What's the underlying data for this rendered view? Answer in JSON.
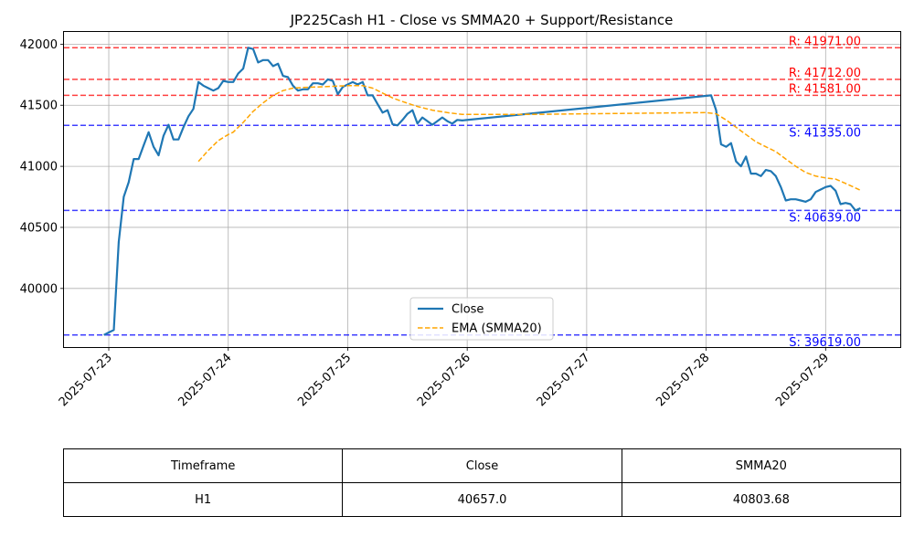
{
  "chart_data": {
    "type": "line",
    "title": "JP225Cash H1 - Close vs SMMA20 + Support/Resistance",
    "xlabel": "",
    "ylabel": "",
    "ylim": [
      39520,
      42100
    ],
    "xlim": [
      "2025-07-22T15:00",
      "2025-07-29T15:00"
    ],
    "grid": true,
    "legend_position": "lower center",
    "x_tick_labels": [
      "2025-07-23",
      "2025-07-24",
      "2025-07-25",
      "2025-07-26",
      "2025-07-27",
      "2025-07-28",
      "2025-07-29"
    ],
    "y_tick_labels": [
      "40000",
      "40500",
      "41000",
      "41500",
      "42000"
    ],
    "series": [
      {
        "name": "Close",
        "color": "#1f77b4",
        "style": "solid",
        "points": [
          [
            "2025-07-22T23:00",
            39619
          ],
          [
            "2025-07-23T00:00",
            39640
          ],
          [
            "2025-07-23T01:00",
            39660
          ],
          [
            "2025-07-23T02:00",
            40380
          ],
          [
            "2025-07-23T03:00",
            40750
          ],
          [
            "2025-07-23T04:00",
            40870
          ],
          [
            "2025-07-23T05:00",
            41060
          ],
          [
            "2025-07-23T06:00",
            41060
          ],
          [
            "2025-07-23T07:00",
            41170
          ],
          [
            "2025-07-23T08:00",
            41280
          ],
          [
            "2025-07-23T09:00",
            41160
          ],
          [
            "2025-07-23T10:00",
            41090
          ],
          [
            "2025-07-23T11:00",
            41250
          ],
          [
            "2025-07-23T12:00",
            41340
          ],
          [
            "2025-07-23T13:00",
            41220
          ],
          [
            "2025-07-23T14:00",
            41220
          ],
          [
            "2025-07-23T15:00",
            41320
          ],
          [
            "2025-07-23T16:00",
            41410
          ],
          [
            "2025-07-23T17:00",
            41470
          ],
          [
            "2025-07-23T18:00",
            41690
          ],
          [
            "2025-07-23T19:00",
            41660
          ],
          [
            "2025-07-23T20:00",
            41640
          ],
          [
            "2025-07-23T21:00",
            41620
          ],
          [
            "2025-07-23T22:00",
            41640
          ],
          [
            "2025-07-23T23:00",
            41700
          ],
          [
            "2025-07-24T00:00",
            41690
          ],
          [
            "2025-07-24T01:00",
            41690
          ],
          [
            "2025-07-24T02:00",
            41760
          ],
          [
            "2025-07-24T03:00",
            41800
          ],
          [
            "2025-07-24T04:00",
            41971
          ],
          [
            "2025-07-24T05:00",
            41960
          ],
          [
            "2025-07-24T06:00",
            41850
          ],
          [
            "2025-07-24T07:00",
            41870
          ],
          [
            "2025-07-24T08:00",
            41870
          ],
          [
            "2025-07-24T09:00",
            41820
          ],
          [
            "2025-07-24T10:00",
            41840
          ],
          [
            "2025-07-24T11:00",
            41740
          ],
          [
            "2025-07-24T12:00",
            41730
          ],
          [
            "2025-07-24T13:00",
            41660
          ],
          [
            "2025-07-24T14:00",
            41620
          ],
          [
            "2025-07-24T15:00",
            41630
          ],
          [
            "2025-07-24T16:00",
            41630
          ],
          [
            "2025-07-24T17:00",
            41680
          ],
          [
            "2025-07-24T18:00",
            41680
          ],
          [
            "2025-07-24T19:00",
            41670
          ],
          [
            "2025-07-24T20:00",
            41712
          ],
          [
            "2025-07-24T21:00",
            41700
          ],
          [
            "2025-07-24T22:00",
            41590
          ],
          [
            "2025-07-24T23:00",
            41650
          ],
          [
            "2025-07-25T00:00",
            41670
          ],
          [
            "2025-07-25T01:00",
            41690
          ],
          [
            "2025-07-25T02:00",
            41670
          ],
          [
            "2025-07-25T03:00",
            41690
          ],
          [
            "2025-07-25T04:00",
            41581
          ],
          [
            "2025-07-25T05:00",
            41581
          ],
          [
            "2025-07-25T06:00",
            41510
          ],
          [
            "2025-07-25T07:00",
            41440
          ],
          [
            "2025-07-25T08:00",
            41460
          ],
          [
            "2025-07-25T09:00",
            41345
          ],
          [
            "2025-07-25T10:00",
            41335
          ],
          [
            "2025-07-25T11:00",
            41380
          ],
          [
            "2025-07-25T12:00",
            41430
          ],
          [
            "2025-07-25T13:00",
            41460
          ],
          [
            "2025-07-25T14:00",
            41350
          ],
          [
            "2025-07-25T15:00",
            41400
          ],
          [
            "2025-07-25T16:00",
            41370
          ],
          [
            "2025-07-25T17:00",
            41340
          ],
          [
            "2025-07-25T18:00",
            41370
          ],
          [
            "2025-07-25T19:00",
            41400
          ],
          [
            "2025-07-25T20:00",
            41370
          ],
          [
            "2025-07-25T21:00",
            41350
          ],
          [
            "2025-07-25T22:00",
            41380
          ],
          [
            "2025-07-25T23:00",
            41375
          ],
          [
            "2025-07-28T01:00",
            41581
          ],
          [
            "2025-07-28T02:00",
            41460
          ],
          [
            "2025-07-28T03:00",
            41180
          ],
          [
            "2025-07-28T04:00",
            41160
          ],
          [
            "2025-07-28T05:00",
            41190
          ],
          [
            "2025-07-28T06:00",
            41040
          ],
          [
            "2025-07-28T07:00",
            41000
          ],
          [
            "2025-07-28T08:00",
            41080
          ],
          [
            "2025-07-28T09:00",
            40940
          ],
          [
            "2025-07-28T10:00",
            40940
          ],
          [
            "2025-07-28T11:00",
            40920
          ],
          [
            "2025-07-28T12:00",
            40970
          ],
          [
            "2025-07-28T13:00",
            40960
          ],
          [
            "2025-07-28T14:00",
            40920
          ],
          [
            "2025-07-28T15:00",
            40830
          ],
          [
            "2025-07-28T16:00",
            40720
          ],
          [
            "2025-07-28T17:00",
            40730
          ],
          [
            "2025-07-28T18:00",
            40730
          ],
          [
            "2025-07-28T19:00",
            40720
          ],
          [
            "2025-07-28T20:00",
            40710
          ],
          [
            "2025-07-28T21:00",
            40730
          ],
          [
            "2025-07-28T22:00",
            40790
          ],
          [
            "2025-07-28T23:00",
            40810
          ],
          [
            "2025-07-29T00:00",
            40830
          ],
          [
            "2025-07-29T01:00",
            40840
          ],
          [
            "2025-07-29T02:00",
            40800
          ],
          [
            "2025-07-29T03:00",
            40690
          ],
          [
            "2025-07-29T04:00",
            40700
          ],
          [
            "2025-07-29T05:00",
            40690
          ],
          [
            "2025-07-29T06:00",
            40639
          ],
          [
            "2025-07-29T07:00",
            40657
          ]
        ]
      },
      {
        "name": "EMA (SMMA20)",
        "color": "#ffa500",
        "style": "dashed",
        "points": [
          [
            "2025-07-23T18:00",
            41040
          ],
          [
            "2025-07-23T20:00",
            41130
          ],
          [
            "2025-07-23T22:00",
            41210
          ],
          [
            "2025-07-24T00:00",
            41260
          ],
          [
            "2025-07-24T01:00",
            41280
          ],
          [
            "2025-07-24T03:00",
            41360
          ],
          [
            "2025-07-24T05:00",
            41450
          ],
          [
            "2025-07-24T07:00",
            41520
          ],
          [
            "2025-07-24T09:00",
            41580
          ],
          [
            "2025-07-24T11:00",
            41620
          ],
          [
            "2025-07-24T13:00",
            41640
          ],
          [
            "2025-07-24T15:00",
            41645
          ],
          [
            "2025-07-24T18:00",
            41650
          ],
          [
            "2025-07-24T21:00",
            41655
          ],
          [
            "2025-07-25T00:00",
            41660
          ],
          [
            "2025-07-25T03:00",
            41660
          ],
          [
            "2025-07-25T05:00",
            41640
          ],
          [
            "2025-07-25T07:00",
            41600
          ],
          [
            "2025-07-25T09:00",
            41560
          ],
          [
            "2025-07-25T11:00",
            41530
          ],
          [
            "2025-07-25T14:00",
            41490
          ],
          [
            "2025-07-25T17:00",
            41460
          ],
          [
            "2025-07-25T20:00",
            41440
          ],
          [
            "2025-07-25T23:00",
            41425
          ],
          [
            "2025-07-26T12:00",
            41425
          ],
          [
            "2025-07-27T00:00",
            41430
          ],
          [
            "2025-07-27T12:00",
            41435
          ],
          [
            "2025-07-28T00:00",
            41440
          ],
          [
            "2025-07-28T02:00",
            41430
          ],
          [
            "2025-07-28T04:00",
            41380
          ],
          [
            "2025-07-28T06:00",
            41320
          ],
          [
            "2025-07-28T08:00",
            41260
          ],
          [
            "2025-07-28T10:00",
            41200
          ],
          [
            "2025-07-28T12:00",
            41160
          ],
          [
            "2025-07-28T14:00",
            41120
          ],
          [
            "2025-07-28T16:00",
            41060
          ],
          [
            "2025-07-28T18:00",
            41000
          ],
          [
            "2025-07-28T20:00",
            40950
          ],
          [
            "2025-07-28T22:00",
            40920
          ],
          [
            "2025-07-29T00:00",
            40905
          ],
          [
            "2025-07-29T02:00",
            40895
          ],
          [
            "2025-07-29T04:00",
            40860
          ],
          [
            "2025-07-29T07:00",
            40803.68
          ]
        ]
      }
    ],
    "levels": [
      {
        "kind": "resistance",
        "value": 41971.0,
        "label": "R: 41971.00",
        "color": "#ff0000"
      },
      {
        "kind": "resistance",
        "value": 41712.0,
        "label": "R: 41712.00",
        "color": "#ff0000"
      },
      {
        "kind": "resistance",
        "value": 41581.0,
        "label": "R: 41581.00",
        "color": "#ff0000"
      },
      {
        "kind": "support",
        "value": 41335.0,
        "label": "S: 41335.00",
        "color": "#0000ff"
      },
      {
        "kind": "support",
        "value": 40639.0,
        "label": "S: 40639.00",
        "color": "#0000ff"
      },
      {
        "kind": "support",
        "value": 39619.0,
        "label": "S: 39619.00",
        "color": "#0000ff"
      }
    ]
  },
  "summary_table": {
    "headers": [
      "Timeframe",
      "Close",
      "SMMA20"
    ],
    "rows": [
      [
        "H1",
        "40657.0",
        "40803.68"
      ]
    ]
  }
}
